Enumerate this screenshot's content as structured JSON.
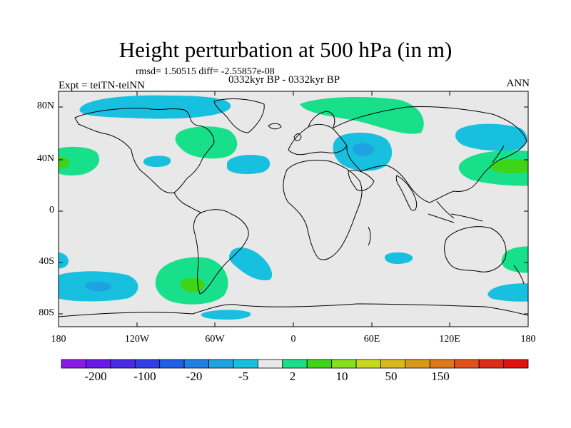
{
  "header": {
    "title": "Height perturbation at 500 hPa (in m)",
    "stats": "rmsd= 1.50515 diff= -2.55857e-08",
    "period": "0332kyr BP - 0332kyr BP",
    "experiment": "Expt = teiTN-teiNN",
    "season": "ANN"
  },
  "map": {
    "background_color": "#e8e8e8",
    "lat_labels": [
      "80N",
      "40N",
      "0",
      "40S",
      "80S"
    ],
    "lon_labels": [
      "180",
      "120W",
      "60W",
      "0",
      "60E",
      "120E",
      "180"
    ]
  },
  "colorbar": {
    "colors": [
      "#8a1ae6",
      "#6a1ae8",
      "#4a2ae6",
      "#2f3ee6",
      "#1f5ee8",
      "#1e7fe6",
      "#1ea3e0",
      "#18c0e0",
      "#e8e8e8",
      "#18e08a",
      "#3ed418",
      "#84e01a",
      "#c8d81a",
      "#d8b81a",
      "#d8981a",
      "#e0781a",
      "#e0501a",
      "#e02a1a",
      "#e01010"
    ],
    "labels": [
      "-200",
      "-100",
      "-20",
      "-5",
      "2",
      "10",
      "50",
      "150"
    ]
  },
  "anomalies": [
    {
      "kind": "negative",
      "color": "#18c0e0"
    },
    {
      "kind": "positive",
      "color": "#18e08a"
    },
    {
      "kind": "positive-strong",
      "color": "#3ed418"
    },
    {
      "kind": "negative-strong",
      "color": "#1ea3e0"
    }
  ]
}
